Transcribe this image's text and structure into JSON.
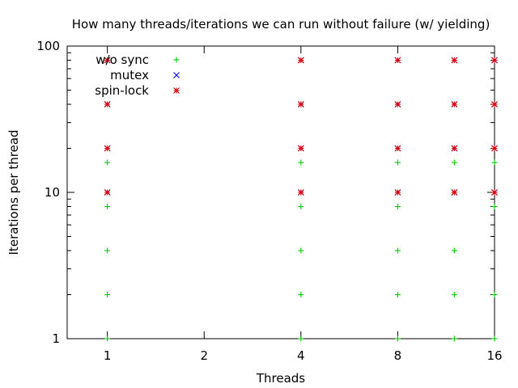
{
  "chart_data": {
    "type": "scatter",
    "title": "How many threads/iterations we can run without failure (w/ yielding)",
    "xlabel": "Threads",
    "ylabel": "Iterations per thread",
    "x_scale": "log2",
    "y_scale": "log10",
    "xlim": [
      0.75,
      16
    ],
    "ylim": [
      1,
      100
    ],
    "x_ticks": [
      1,
      2,
      4,
      8,
      16
    ],
    "x_tick_labels": [
      "1",
      "2",
      "4",
      "8",
      "16"
    ],
    "y_ticks": [
      1,
      10,
      100
    ],
    "y_tick_labels": [
      "1",
      "10",
      "100"
    ],
    "legend_position": "top-left",
    "grid": false,
    "series": [
      {
        "name": "w/o sync",
        "marker": "+",
        "color": "#00cc00",
        "points": [
          [
            1,
            1
          ],
          [
            1,
            2
          ],
          [
            1,
            4
          ],
          [
            1,
            8
          ],
          [
            1,
            16
          ],
          [
            4,
            1
          ],
          [
            4,
            2
          ],
          [
            4,
            4
          ],
          [
            4,
            8
          ],
          [
            4,
            16
          ],
          [
            8,
            1
          ],
          [
            8,
            2
          ],
          [
            8,
            4
          ],
          [
            8,
            8
          ],
          [
            8,
            16
          ],
          [
            12,
            1
          ],
          [
            12,
            2
          ],
          [
            12,
            4
          ],
          [
            12,
            16
          ],
          [
            16,
            1
          ],
          [
            16,
            2
          ],
          [
            16,
            8
          ],
          [
            16,
            16
          ]
        ]
      },
      {
        "name": "mutex",
        "marker": "x",
        "color": "#0000ff",
        "points": [
          [
            1,
            10
          ],
          [
            1,
            20
          ],
          [
            1,
            40
          ],
          [
            1,
            80
          ],
          [
            4,
            10
          ],
          [
            4,
            20
          ],
          [
            4,
            40
          ],
          [
            4,
            80
          ],
          [
            8,
            10
          ],
          [
            8,
            20
          ],
          [
            8,
            40
          ],
          [
            8,
            80
          ],
          [
            12,
            10
          ],
          [
            12,
            20
          ],
          [
            12,
            40
          ],
          [
            12,
            80
          ],
          [
            16,
            10
          ],
          [
            16,
            20
          ],
          [
            16,
            40
          ],
          [
            16,
            80
          ]
        ]
      },
      {
        "name": "spin-lock",
        "marker": "*",
        "color": "#dd0000",
        "points": [
          [
            1,
            10
          ],
          [
            1,
            20
          ],
          [
            1,
            40
          ],
          [
            1,
            80
          ],
          [
            4,
            10
          ],
          [
            4,
            20
          ],
          [
            4,
            40
          ],
          [
            4,
            80
          ],
          [
            8,
            10
          ],
          [
            8,
            20
          ],
          [
            8,
            40
          ],
          [
            8,
            80
          ],
          [
            12,
            10
          ],
          [
            12,
            20
          ],
          [
            12,
            40
          ],
          [
            12,
            80
          ],
          [
            16,
            10
          ],
          [
            16,
            20
          ],
          [
            16,
            40
          ],
          [
            16,
            80
          ]
        ]
      }
    ]
  }
}
